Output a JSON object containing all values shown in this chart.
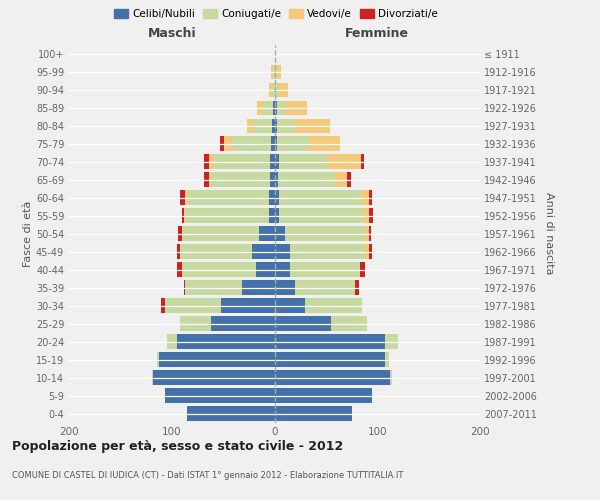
{
  "age_groups": [
    "0-4",
    "5-9",
    "10-14",
    "15-19",
    "20-24",
    "25-29",
    "30-34",
    "35-39",
    "40-44",
    "45-49",
    "50-54",
    "55-59",
    "60-64",
    "65-69",
    "70-74",
    "75-79",
    "80-84",
    "85-89",
    "90-94",
    "95-99",
    "100+"
  ],
  "birth_years": [
    "2007-2011",
    "2002-2006",
    "1997-2001",
    "1992-1996",
    "1987-1991",
    "1982-1986",
    "1977-1981",
    "1972-1976",
    "1967-1971",
    "1962-1966",
    "1957-1961",
    "1952-1956",
    "1947-1951",
    "1942-1946",
    "1937-1941",
    "1932-1936",
    "1927-1931",
    "1922-1926",
    "1917-1921",
    "1912-1916",
    "≤ 1911"
  ],
  "maschi_celibi": [
    85,
    107,
    118,
    112,
    95,
    62,
    52,
    32,
    18,
    22,
    15,
    5,
    5,
    4,
    4,
    3,
    2,
    1,
    0,
    0,
    0
  ],
  "maschi_coniugati": [
    0,
    0,
    1,
    2,
    10,
    30,
    55,
    55,
    72,
    70,
    75,
    82,
    80,
    58,
    55,
    38,
    20,
    10,
    2,
    1,
    0
  ],
  "maschi_vedovi": [
    0,
    0,
    0,
    0,
    0,
    0,
    0,
    0,
    0,
    0,
    0,
    1,
    2,
    2,
    5,
    8,
    5,
    6,
    3,
    2,
    0
  ],
  "maschi_divorziati": [
    0,
    0,
    0,
    0,
    0,
    0,
    3,
    1,
    5,
    3,
    4,
    2,
    5,
    5,
    5,
    4,
    0,
    0,
    0,
    0,
    0
  ],
  "femmine_nubili": [
    75,
    95,
    112,
    108,
    108,
    55,
    30,
    20,
    15,
    15,
    10,
    4,
    4,
    3,
    4,
    2,
    2,
    2,
    0,
    0,
    0
  ],
  "femmine_coniugate": [
    0,
    0,
    2,
    3,
    12,
    35,
    55,
    58,
    68,
    72,
    78,
    82,
    80,
    56,
    48,
    32,
    18,
    8,
    3,
    2,
    0
  ],
  "femmine_vedove": [
    0,
    0,
    0,
    0,
    0,
    0,
    0,
    0,
    0,
    5,
    4,
    6,
    8,
    12,
    32,
    30,
    34,
    22,
    10,
    4,
    0
  ],
  "femmine_divorziate": [
    0,
    0,
    0,
    0,
    0,
    0,
    0,
    4,
    5,
    3,
    2,
    4,
    3,
    3,
    3,
    0,
    0,
    0,
    0,
    0,
    0
  ],
  "color_celibi": "#4472a8",
  "color_coniugati": "#c5d9a0",
  "color_vedovi": "#f5c97a",
  "color_divorziati": "#cc2222",
  "xlim": 200,
  "title": "Popolazione per età, sesso e stato civile - 2012",
  "subtitle": "COMUNE DI CASTEL DI IUDICA (CT) - Dati ISTAT 1° gennaio 2012 - Elaborazione TUTTITALIA.IT",
  "ylabel_left": "Fasce di età",
  "ylabel_right": "Anni di nascita",
  "legend_labels": [
    "Celibi/Nubili",
    "Coniugati/e",
    "Vedovi/e",
    "Divorziati/e"
  ],
  "maschi_label": "Maschi",
  "femmine_label": "Femmine",
  "bg_color": "#f0f0f0"
}
